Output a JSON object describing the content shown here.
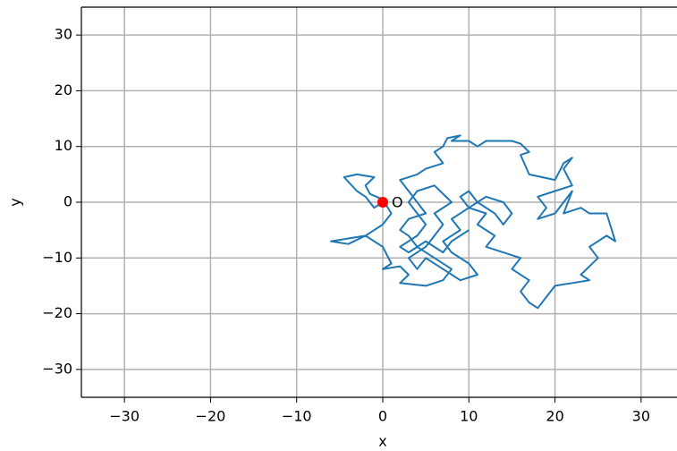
{
  "chart_data": {
    "type": "line",
    "xlabel": "x",
    "ylabel": "y",
    "color": "#1f77b4",
    "grid": true,
    "xlim": [
      -35,
      35
    ],
    "ylim": [
      -35,
      35
    ],
    "xticks": [
      {
        "value": -30,
        "label": "−30"
      },
      {
        "value": -20,
        "label": "−20"
      },
      {
        "value": -10,
        "label": "−10"
      },
      0,
      10,
      20,
      30
    ],
    "yticks": [
      {
        "value": -30,
        "label": "−30"
      },
      {
        "value": -20,
        "label": "−20"
      },
      {
        "value": -10,
        "label": "−10"
      },
      0,
      10,
      20,
      30
    ],
    "x": [
      0,
      -1,
      -2,
      -3,
      -4.5,
      -3,
      -1,
      -2,
      -1.5,
      0,
      1,
      0,
      -2,
      -4,
      -6,
      -4,
      -2,
      0,
      1,
      0,
      2,
      3,
      2,
      5,
      7,
      8,
      6,
      4,
      3,
      2,
      3,
      5,
      4,
      3,
      2,
      4,
      5,
      7,
      6,
      7,
      7.5,
      9,
      8,
      10,
      11,
      12,
      15,
      16,
      17,
      16,
      17,
      20,
      21,
      22,
      21,
      22,
      20,
      18,
      19,
      18,
      20,
      21,
      22,
      21,
      23,
      24,
      26,
      27,
      26,
      24,
      25,
      23,
      24,
      20,
      19,
      18,
      17,
      16,
      17,
      15,
      16,
      14,
      12,
      13,
      11,
      12,
      10,
      9,
      10,
      11,
      13,
      14,
      15,
      14,
      12,
      10,
      8,
      9,
      7,
      8,
      10,
      11,
      9,
      7,
      5,
      4,
      3,
      5,
      6,
      7,
      6,
      8,
      6,
      4,
      3,
      5,
      4,
      2,
      3,
      5,
      7,
      8,
      10
    ],
    "values": [
      0,
      -1,
      1,
      2,
      4.5,
      5,
      4.5,
      3,
      1.5,
      0.5,
      -2,
      -4,
      -6,
      -6.5,
      -7,
      -7.5,
      -6,
      -8,
      -11,
      -12,
      -11.5,
      -13,
      -14.5,
      -15,
      -14,
      -12,
      -10,
      -8,
      -6,
      -5,
      -3,
      -2,
      0,
      2,
      4,
      5,
      6,
      7,
      9,
      10,
      11.5,
      12,
      11,
      11,
      10,
      11,
      11,
      10.5,
      9,
      8.5,
      5,
      4,
      7,
      8,
      6,
      3,
      2,
      1,
      -1,
      -3,
      -2,
      0,
      2,
      -2,
      -1,
      -2,
      -2,
      -7,
      -6,
      -8,
      -10,
      -13,
      -14,
      -15,
      -17,
      -19,
      -18,
      -16,
      -14,
      -12,
      -10,
      -9,
      -8,
      -6,
      -4,
      -2,
      -1,
      1,
      2,
      0,
      -2,
      -4,
      -2,
      0,
      1,
      -1,
      -3,
      -5,
      -7,
      -9,
      -11,
      -13,
      -14,
      -12,
      -10,
      -12,
      -10,
      -8,
      -6,
      -4,
      -2,
      0,
      3,
      2,
      0,
      -4,
      -6,
      -8,
      -9,
      -7,
      -9,
      -7,
      -5
    ],
    "annotations": [
      {
        "text": "O",
        "x": 0,
        "y": 0,
        "color": "#ff0000"
      }
    ]
  }
}
